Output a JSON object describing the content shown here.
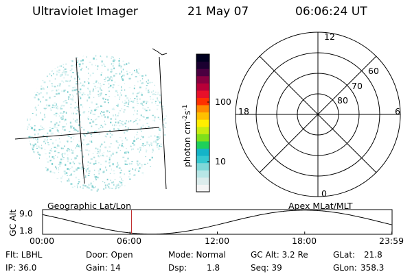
{
  "header": {
    "title": "Ultraviolet Imager",
    "date": "21 May 07",
    "time": "06:06:24 UT"
  },
  "image_panel": {
    "noise_color": "#9fd9d9",
    "grid_color": "#000000"
  },
  "colorbar": {
    "label": "photon cm",
    "label_sup1": "-2",
    "label_mid": "s",
    "label_sup2": "-1",
    "tick_100": "100",
    "tick_10": "10",
    "colors": [
      "#f4f4f4",
      "#dcecec",
      "#b8e6e6",
      "#7fd8d8",
      "#35c8d0",
      "#14b4c8",
      "#1fd05a",
      "#7fe01a",
      "#c8ec10",
      "#ffee00",
      "#ffc000",
      "#ff8a00",
      "#ff3000",
      "#e8102a",
      "#b80038",
      "#880040",
      "#4a0040",
      "#1a0030",
      "#000020"
    ]
  },
  "polar": {
    "label_12": "12",
    "label_18": "18",
    "label_6": "6",
    "label_0": "0",
    "ring_60": "60",
    "ring_70": "70",
    "ring_80": "80"
  },
  "orbit": {
    "left_label": "Geographic Lat/Lon",
    "right_label": "Apex MLat/MLT",
    "ylabel": "GC Alt",
    "ymax": "9.0",
    "ymin": "1.8",
    "xticks": [
      "00:00",
      "06:00",
      "12:00",
      "18:00",
      "23:59"
    ],
    "marker_color": "#c03030",
    "marker_time_hours": 6.1067
  },
  "footer": {
    "flt": "Flt: LBHL",
    "ip": "IP: 36.0",
    "door": "Door: Open",
    "gain": "Gain: 14",
    "mode": "Mode: Normal",
    "dsp_label": "Dsp:",
    "dsp_value": "1.8",
    "gcalt": "GC Alt: 3.2 Re",
    "seq": "Seq: 39",
    "glat_label": "GLat:",
    "glat_value": "21.8",
    "glon_label": "GLon:",
    "glon_value": "358.3"
  }
}
